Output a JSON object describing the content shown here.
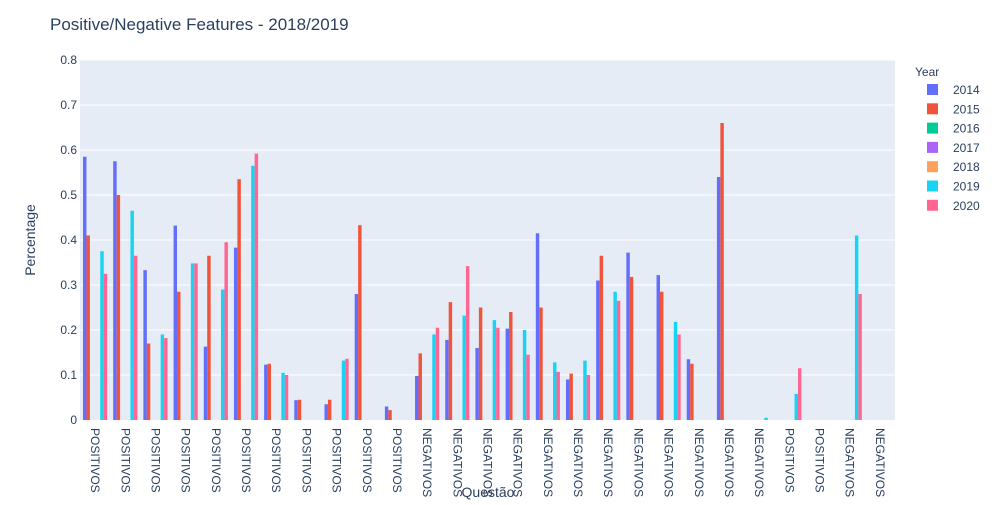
{
  "chart_data": {
    "type": "bar",
    "title": "Positive/Negative Features  - 2018/2019",
    "xlabel": "Questão",
    "ylabel": "Percentage",
    "ylim": [
      0,
      0.8
    ],
    "yticks": [
      "0",
      "0.1",
      "0.2",
      "0.3",
      "0.4",
      "0.5",
      "0.6",
      "0.7",
      "0.8"
    ],
    "grid": true,
    "legend_title": "Year",
    "legend_position": "right",
    "categories": [
      "POSITIVOS",
      "POSITIVOS",
      "POSITIVOS",
      "POSITIVOS",
      "POSITIVOS",
      "POSITIVOS",
      "POSITIVOS",
      "POSITIVOS",
      "POSITIVOS",
      "POSITIVOS",
      "POSITIVOS",
      "NEGATIVOS",
      "NEGATIVOS",
      "NEGATIVOS",
      "NEGATIVOS",
      "NEGATIVOS",
      "NEGATIVOS",
      "NEGATIVOS",
      "NEGATIVOS",
      "NEGATIVOS",
      "NEGATIVOS",
      "NEGATIVOS",
      "NEGATIVOS",
      "POSITIVOS",
      "POSITIVOS",
      "NEGATIVOS",
      "NEGATIVOS"
    ],
    "series": [
      {
        "name": "2014",
        "color": "#636efa",
        "values": [
          0.585,
          0.575,
          0.333,
          0.432,
          0.163,
          0.383,
          0.123,
          0.044,
          0.035,
          0.28,
          0.03,
          0.098,
          0.178,
          0.16,
          0.203,
          0.415,
          0.09,
          0.31,
          0.372,
          0.322,
          0.135,
          0.54,
          0,
          0,
          0,
          0,
          0
        ]
      },
      {
        "name": "2015",
        "color": "#EF553B",
        "values": [
          0.41,
          0.5,
          0.17,
          0.285,
          0.365,
          0.535,
          0.125,
          0.045,
          0.045,
          0.433,
          0.022,
          0.148,
          0.262,
          0.25,
          0.24,
          0.25,
          0.103,
          0.365,
          0.318,
          0.285,
          0.125,
          0.66,
          0,
          0,
          0,
          0,
          0
        ]
      },
      {
        "name": "2016",
        "color": "#00cc96",
        "values": [
          0,
          0,
          0,
          0,
          0,
          0,
          0,
          0,
          0,
          0,
          0,
          0,
          0,
          0,
          0,
          0,
          0,
          0,
          0,
          0,
          0,
          0,
          0,
          0,
          0,
          0,
          0
        ]
      },
      {
        "name": "2017",
        "color": "#ab63fa",
        "values": [
          0,
          0,
          0,
          0,
          0,
          0,
          0,
          0,
          0,
          0,
          0,
          0,
          0,
          0,
          0,
          0,
          0,
          0,
          0,
          0,
          0,
          0,
          0,
          0,
          0,
          0,
          0
        ]
      },
      {
        "name": "2018",
        "color": "#FFA15A",
        "values": [
          0,
          0,
          0,
          0,
          0,
          0,
          0,
          0,
          0,
          0,
          0,
          0,
          0,
          0,
          0,
          0,
          0,
          0,
          0,
          0,
          0,
          0,
          0,
          0,
          0,
          0,
          0
        ]
      },
      {
        "name": "2019",
        "color": "#19d3f3",
        "values": [
          0.375,
          0.465,
          0.19,
          0.348,
          0.29,
          0.565,
          0.105,
          0,
          0.132,
          0,
          0,
          0.19,
          0.232,
          0.222,
          0.2,
          0.128,
          0.132,
          0.285,
          0,
          0.218,
          0,
          0,
          0.005,
          0.058,
          0,
          0.41,
          0
        ]
      },
      {
        "name": "2020",
        "color": "#FF6692",
        "values": [
          0.325,
          0.365,
          0.182,
          0.348,
          0.395,
          0.592,
          0.1,
          0,
          0.136,
          0,
          0,
          0.205,
          0.342,
          0.205,
          0.145,
          0.107,
          0.1,
          0.265,
          0,
          0.19,
          0,
          0,
          0,
          0.115,
          0,
          0.28,
          0
        ]
      }
    ]
  }
}
